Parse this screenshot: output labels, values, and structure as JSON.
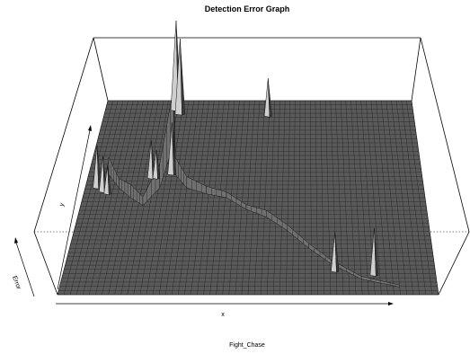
{
  "chart_data": {
    "type": "surface3d",
    "title": "Detection Error Graph",
    "xlabel": "x",
    "ylabel": "y",
    "zlabel": "Error",
    "caption": "Fight_Chase",
    "grid": true,
    "colors": {
      "surface_fill": "#5a5a5a",
      "mesh_line": "#1a1a1a",
      "box_line": "#000000",
      "peak_fill": "#cfcfcf"
    },
    "ridge_path": [
      {
        "u": 0.06,
        "v": 0.62,
        "z": 18
      },
      {
        "u": 0.1,
        "v": 0.55,
        "z": 10
      },
      {
        "u": 0.14,
        "v": 0.5,
        "z": 14
      },
      {
        "u": 0.18,
        "v": 0.46,
        "z": 9
      },
      {
        "u": 0.22,
        "v": 0.55,
        "z": 25
      },
      {
        "u": 0.24,
        "v": 0.78,
        "z": 60
      },
      {
        "u": 0.26,
        "v": 0.62,
        "z": 18
      },
      {
        "u": 0.3,
        "v": 0.55,
        "z": 12
      },
      {
        "u": 0.36,
        "v": 0.52,
        "z": 8
      },
      {
        "u": 0.42,
        "v": 0.5,
        "z": 6
      },
      {
        "u": 0.48,
        "v": 0.44,
        "z": 5
      },
      {
        "u": 0.54,
        "v": 0.4,
        "z": 7
      },
      {
        "u": 0.6,
        "v": 0.33,
        "z": 6
      },
      {
        "u": 0.66,
        "v": 0.24,
        "z": 5
      },
      {
        "u": 0.72,
        "v": 0.16,
        "z": 4
      },
      {
        "u": 0.8,
        "v": 0.08,
        "z": 3
      },
      {
        "u": 0.9,
        "v": 0.04,
        "z": 2
      }
    ],
    "spikes": [
      {
        "u": 0.035,
        "v": 0.55,
        "z": 45
      },
      {
        "u": 0.055,
        "v": 0.53,
        "z": 38
      },
      {
        "u": 0.07,
        "v": 0.52,
        "z": 30
      },
      {
        "u": 0.23,
        "v": 0.95,
        "z": 95
      },
      {
        "u": 0.245,
        "v": 0.93,
        "z": 80
      },
      {
        "u": 0.25,
        "v": 0.62,
        "z": 55
      },
      {
        "u": 0.19,
        "v": 0.6,
        "z": 40
      },
      {
        "u": 0.205,
        "v": 0.6,
        "z": 30
      },
      {
        "u": 0.53,
        "v": 0.92,
        "z": 40
      },
      {
        "u": 0.73,
        "v": 0.12,
        "z": 42
      },
      {
        "u": 0.835,
        "v": 0.1,
        "z": 50
      }
    ]
  }
}
